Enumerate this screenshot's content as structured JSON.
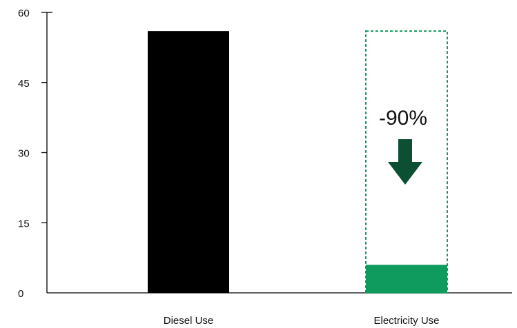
{
  "chart_data": {
    "type": "bar",
    "title": "",
    "xlabel": "",
    "ylabel": "",
    "categories": [
      "Diesel Use",
      "Electricity Use"
    ],
    "values": [
      56,
      6
    ],
    "reference_value": 56,
    "ylim": [
      0,
      60
    ],
    "yticks": [
      "0",
      "15",
      "30",
      "45",
      "60"
    ],
    "grid": false,
    "legend": "none",
    "annotation": "-90%",
    "colors": {
      "diesel": "#000000",
      "electricity": "#0f9a5e",
      "dashed_outline": "#0f9a5e",
      "arrow": "#0d4f33",
      "axis": "#000000"
    },
    "icons": [
      "down-arrow-icon"
    ]
  }
}
